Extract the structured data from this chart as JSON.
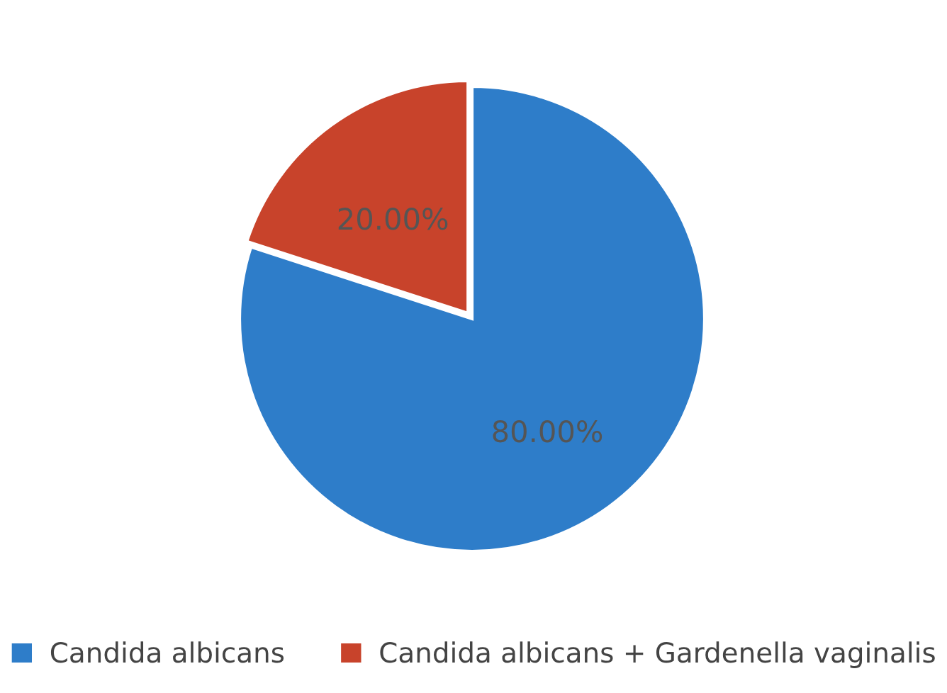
{
  "chart_data": {
    "type": "pie",
    "categories": [
      "Candida albicans",
      "Candida albicans + Gardenella vaginalis"
    ],
    "values": [
      80,
      20
    ],
    "colors": [
      "#2e7dc9",
      "#c8432b"
    ],
    "value_labels": [
      "80.00%",
      "20.00%"
    ],
    "legend": "bottom"
  }
}
